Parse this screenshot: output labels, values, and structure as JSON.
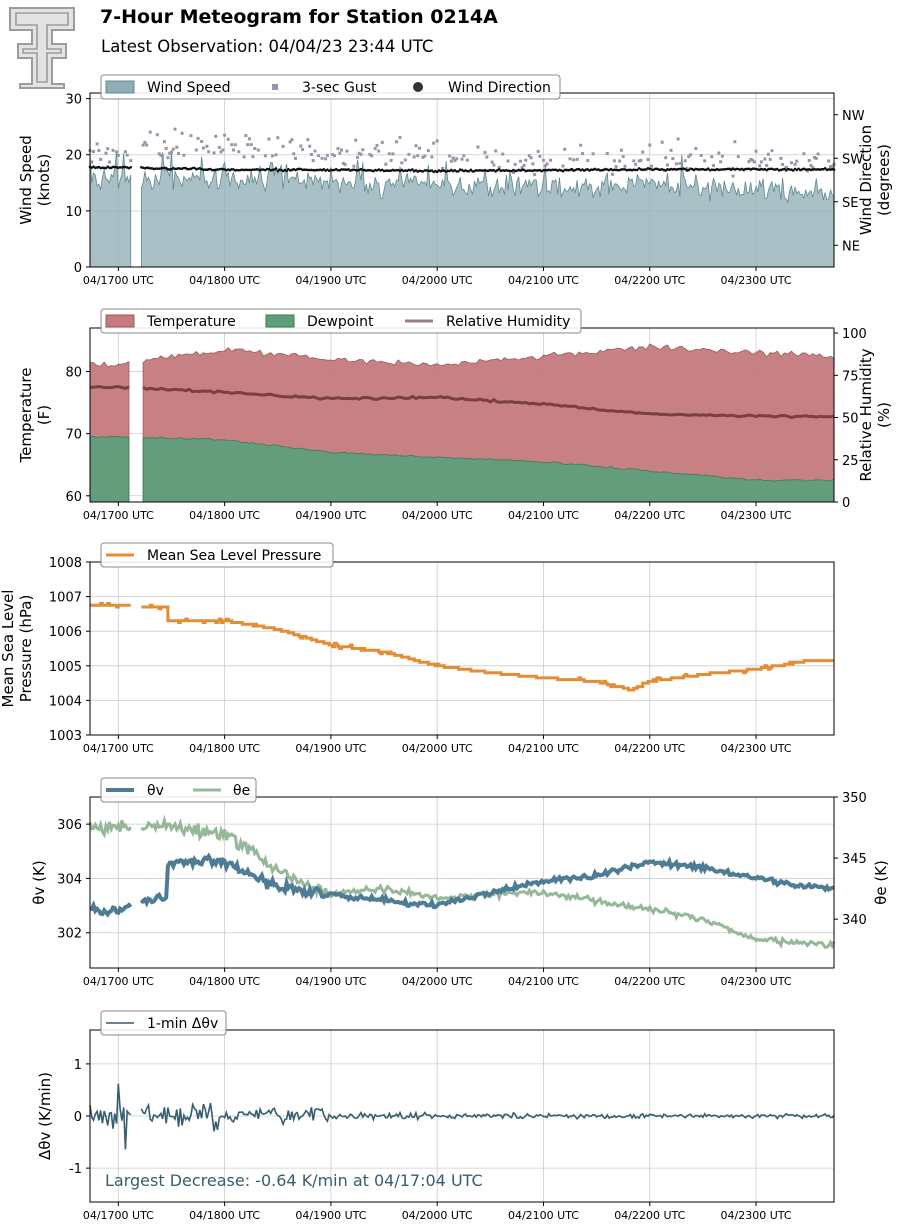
{
  "header": {
    "title": "7-Hour Meteogram for Station 0214A",
    "subtitle": "Latest Observation: 04/04/23 23:44 UTC",
    "logo_icon": "texas-tech-double-t-logo-icon"
  },
  "x_ticks": [
    "04/1700 UTC",
    "04/1800 UTC",
    "04/1900 UTC",
    "04/2000 UTC",
    "04/2100 UTC",
    "04/2200 UTC",
    "04/2300 UTC"
  ],
  "chart_data": [
    {
      "type": "area",
      "ylabel": "Wind Speed\n(knots)",
      "y2label": "Wind Direction\n(degrees)",
      "ylim": [
        0,
        31
      ],
      "yticks": [
        0,
        10,
        20,
        30
      ],
      "y2ticks": [
        "NE",
        "SE",
        "SW",
        "NW"
      ],
      "y2lim": [
        0,
        360
      ],
      "xlim": [
        "04/16:44",
        "23:44"
      ],
      "gap": [
        "04/17:08",
        "04/17:13"
      ],
      "legend": "top-left",
      "grid": true,
      "series": [
        {
          "name": "Wind Speed",
          "color": "#8faeb6",
          "approx_mean": 15,
          "values_hourly": [
            15.5,
            16,
            15,
            14.5,
            14,
            14.5,
            13.5
          ]
        },
        {
          "name": "3-sec Gust",
          "color": "#9a93aa",
          "approx_mean": 20,
          "values_hourly": [
            21,
            22,
            20,
            20,
            19,
            20,
            19
          ]
        },
        {
          "name": "Wind Direction",
          "color": "#111111",
          "approx_mean_deg": 203,
          "values_hourly": [
            206,
            201,
            201,
            199,
            200,
            202,
            202
          ]
        }
      ]
    },
    {
      "type": "area",
      "ylabel": "Temperature\n(F)",
      "y2label": "Relative Humidity\n(%)",
      "ylim": [
        59,
        87
      ],
      "yticks": [
        60,
        70,
        80
      ],
      "y2ticks": [
        0,
        25,
        50,
        75,
        100
      ],
      "y2lim": [
        0,
        103
      ],
      "gap": [
        "04/17:08",
        "04/17:13"
      ],
      "legend": "top-left",
      "grid": true,
      "series": [
        {
          "name": "Temperature",
          "color": "#c47a7e",
          "x_hours": [
            0,
            1,
            2,
            3,
            4,
            5,
            6,
            7
          ],
          "values": [
            81.2,
            83.5,
            82.0,
            81.0,
            82.5,
            84.0,
            83.0,
            82.3
          ]
        },
        {
          "name": "Dewpoint",
          "color": "#5f9e7a",
          "x_hours": [
            0,
            1,
            2,
            3,
            4,
            5,
            6,
            7
          ],
          "values": [
            69.5,
            69.0,
            67.0,
            66.2,
            65.5,
            64.0,
            62.5,
            62.5
          ]
        },
        {
          "name": "Relative Humidity",
          "color": "#7a3e44",
          "x_hours": [
            0,
            1,
            2,
            3,
            4,
            5,
            6,
            7
          ],
          "values": [
            68,
            65,
            61,
            62,
            58,
            52,
            51,
            50
          ]
        }
      ]
    },
    {
      "type": "line",
      "ylabel": "Mean Sea Level\nPressure (hPa)",
      "ylim": [
        1003,
        1008
      ],
      "yticks": [
        1003,
        1004,
        1005,
        1006,
        1007,
        1008
      ],
      "legend": "top-left",
      "grid": true,
      "series": [
        {
          "name": "Mean Sea Level Pressure",
          "color": "#e38d35",
          "x_hours": [
            0,
            0.4,
            0.45,
            1.0,
            1.5,
            2.0,
            2.5,
            3.0,
            3.5,
            4.0,
            4.5,
            4.83,
            5.0,
            5.5,
            6.0,
            6.5,
            7.0
          ],
          "values": [
            1006.75,
            1006.7,
            null,
            1006.3,
            1006.05,
            1005.6,
            1005.4,
            1005.0,
            1004.8,
            1004.65,
            1004.55,
            1004.3,
            1004.55,
            1004.75,
            1004.9,
            1005.15,
            1005.2
          ]
        }
      ]
    },
    {
      "type": "line",
      "ylabel": "θv (K)",
      "y2label": "θe (K)",
      "ylim": [
        300.7,
        307
      ],
      "yticks": [
        302,
        304,
        306
      ],
      "y2lim": [
        336,
        350
      ],
      "y2ticks": [
        340,
        345,
        350
      ],
      "legend": "top-left",
      "grid": true,
      "series": [
        {
          "name": "θv",
          "color": "#4e7c94",
          "x_hours": [
            0,
            0.4,
            0.45,
            1.0,
            1.5,
            2.0,
            2.5,
            3.0,
            3.5,
            4.0,
            4.5,
            5.0,
            5.5,
            6.0,
            6.5,
            7.0
          ],
          "values": [
            302.8,
            303.3,
            null,
            304.6,
            303.7,
            303.4,
            303.2,
            303.0,
            303.5,
            303.9,
            304.1,
            304.6,
            304.4,
            304.0,
            303.7,
            303.6
          ]
        },
        {
          "name": "θe",
          "color": "#95b899",
          "x_hours": [
            0,
            0.45,
            1.0,
            1.5,
            2.0,
            2.5,
            3.0,
            3.5,
            4.0,
            4.5,
            5.0,
            5.5,
            6.0,
            6.5,
            7.0
          ],
          "values": [
            347.5,
            347.6,
            347.0,
            344.0,
            342.0,
            342.5,
            341.8,
            342.0,
            342.2,
            341.5,
            340.8,
            340.0,
            338.3,
            338.0,
            337.8
          ]
        }
      ]
    },
    {
      "type": "line",
      "ylabel": "Δθv (K/min)",
      "ylim": [
        -1.65,
        1.65
      ],
      "yticks": [
        -1,
        0,
        1
      ],
      "legend": "top-left",
      "grid": true,
      "series": [
        {
          "name": "1-min Δθv",
          "color": "#355e70",
          "approx_amplitude_by_hour": [
            0.35,
            0.2,
            0.1,
            0.07,
            0.07,
            0.06,
            0.06
          ]
        }
      ],
      "annotation": "Largest Decrease: -0.64 K/min at 04/17:04 UTC"
    }
  ],
  "legends": {
    "wind": [
      "Wind Speed",
      "3-sec Gust",
      "Wind Direction"
    ],
    "temp": [
      "Temperature",
      "Dewpoint",
      "Relative Humidity"
    ],
    "pressure": [
      "Mean Sea Level Pressure"
    ],
    "theta": [
      "θv",
      "θe"
    ],
    "dtheta": [
      "1-min Δθv"
    ]
  }
}
